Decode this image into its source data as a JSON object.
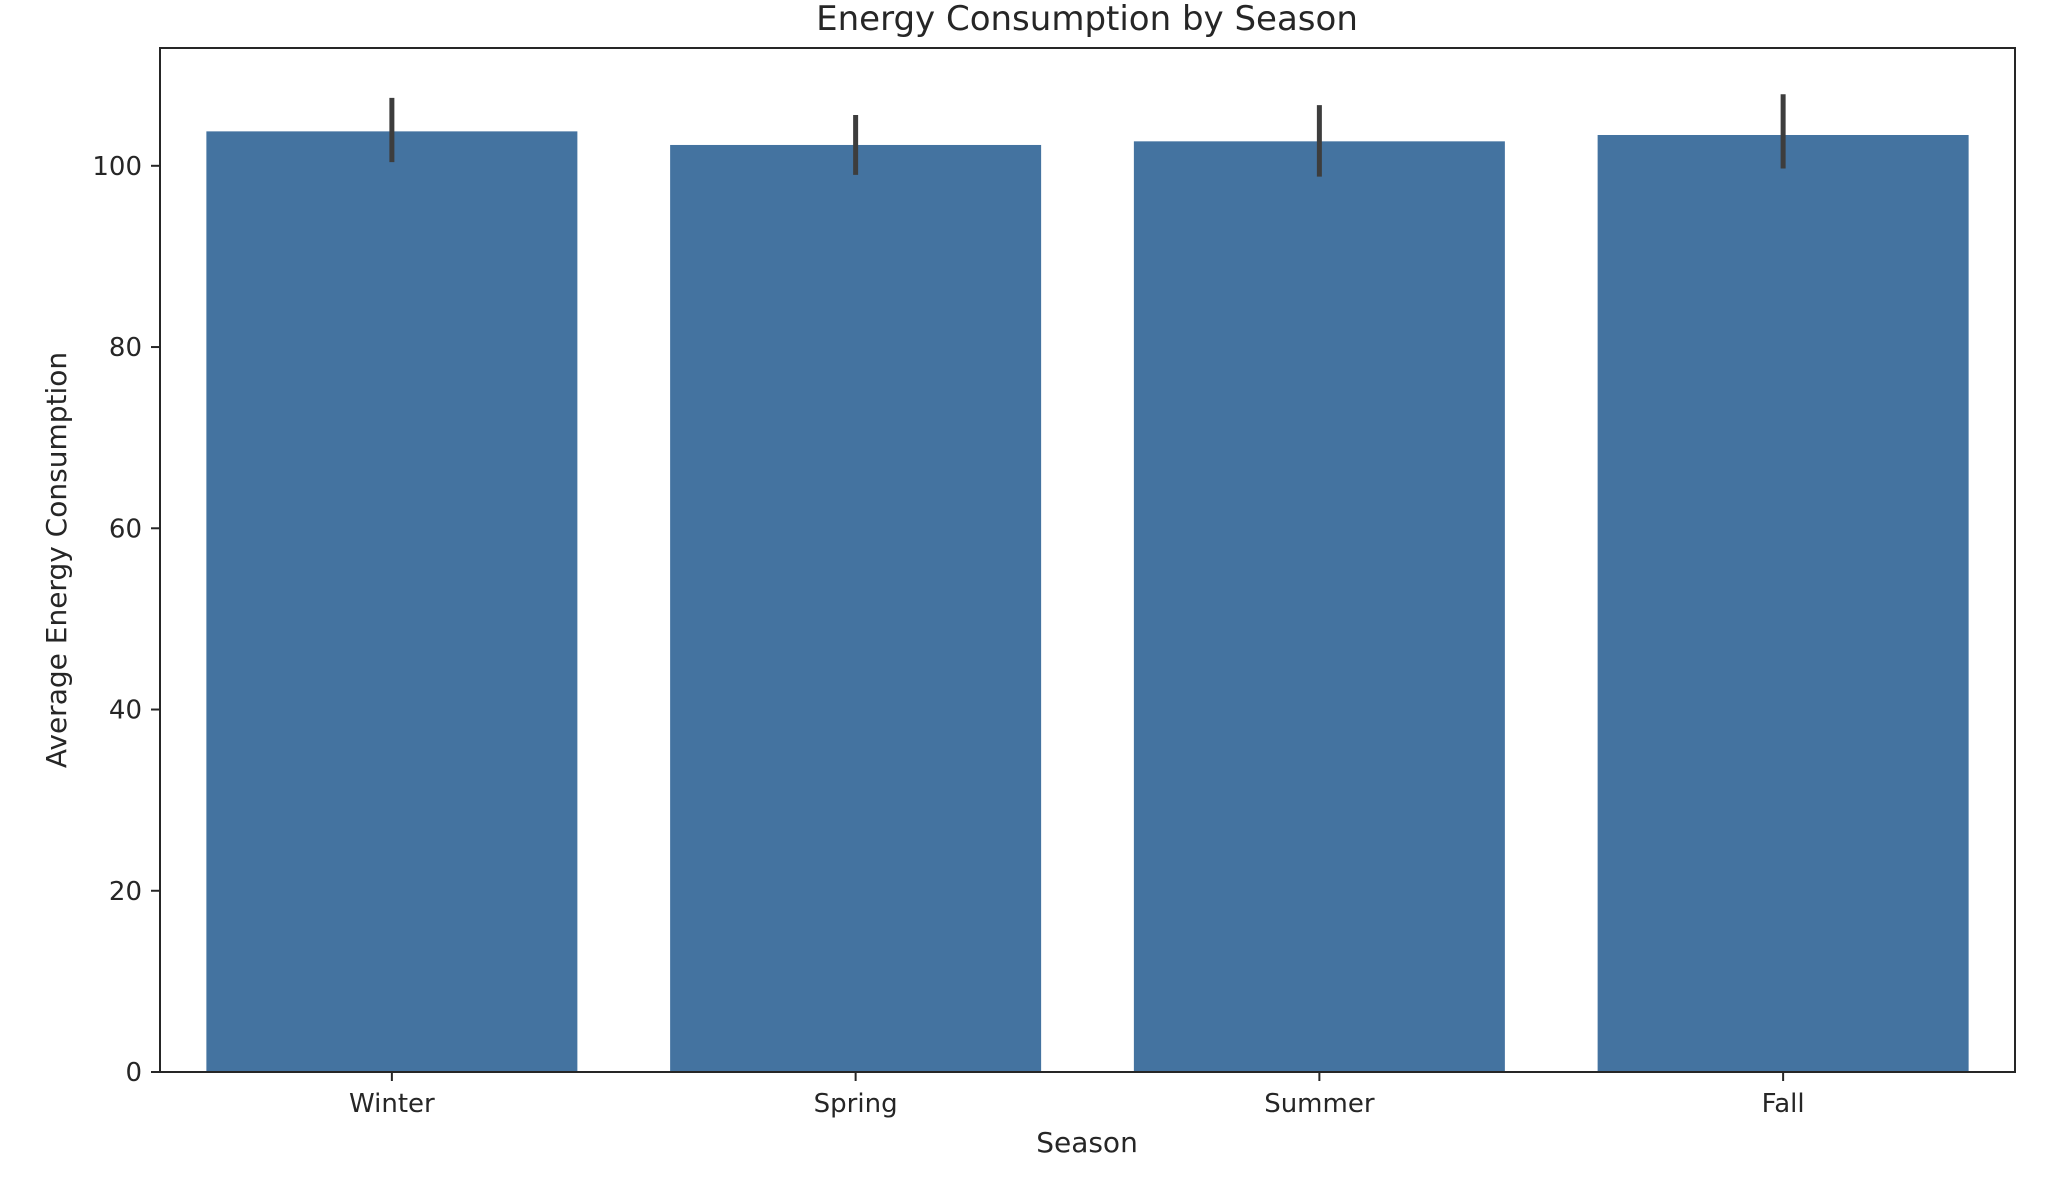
{
  "chart_data": {
    "type": "bar",
    "title": "Energy Consumption by Season",
    "xlabel": "Season",
    "ylabel": "Average Energy Consumption",
    "categories": [
      "Winter",
      "Spring",
      "Summer",
      "Fall"
    ],
    "values": [
      103.8,
      102.3,
      102.7,
      103.4
    ],
    "error_low": [
      100.4,
      99.0,
      98.8,
      99.7
    ],
    "error_high": [
      107.5,
      105.6,
      106.7,
      107.9
    ],
    "ylim": [
      0,
      113
    ],
    "yticks": [
      0,
      20,
      40,
      60,
      80,
      100
    ],
    "grid": false,
    "bar_color": "#4473a0",
    "error_color": "#3d3d3d"
  }
}
